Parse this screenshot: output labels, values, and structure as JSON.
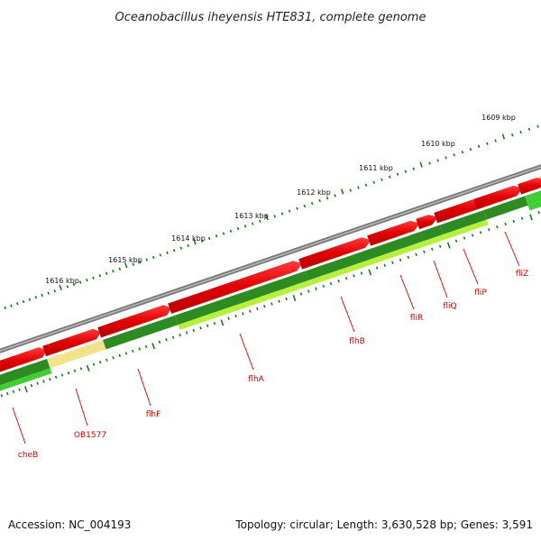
{
  "title": "Oceanobacillus iheyensis HTE831, complete genome",
  "footer": {
    "accession": "Accession: NC_004193",
    "topology": "Topology: circular; Length: 3,630,528 bp; Genes: 3,591"
  },
  "colors": {
    "backbone": "#808080",
    "forward_cds": "#e80000",
    "cog_dark_green": "#2e8b22",
    "cog_light_green": "#3fce34",
    "cog_yellow_green": "#b6f03a",
    "cog_pale_yellow": "#f2e28a",
    "ticks": "#1a7a1a",
    "labels": "#cc0000"
  },
  "ruler_labels": [
    {
      "label": "1609 kbp"
    },
    {
      "label": "1610 kbp"
    },
    {
      "label": "1611 kbp"
    },
    {
      "label": "1612 kbp"
    },
    {
      "label": "1613 kbp"
    },
    {
      "label": "1614 kbp"
    },
    {
      "label": "1615 kbp"
    },
    {
      "label": "1616 kbp"
    }
  ],
  "genes": [
    {
      "name": "fliZ"
    },
    {
      "name": "fliP"
    },
    {
      "name": "fliQ"
    },
    {
      "name": "fliR"
    },
    {
      "name": "flhB"
    },
    {
      "name": "flhA"
    },
    {
      "name": "flhF"
    },
    {
      "name": "OB1577"
    },
    {
      "name": "cheB"
    }
  ]
}
